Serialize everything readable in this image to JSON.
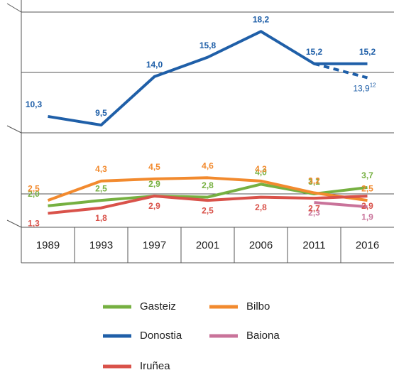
{
  "chart_data": {
    "type": "line",
    "categories": [
      "1989",
      "1993",
      "1997",
      "2001",
      "2006",
      "2011",
      "2016"
    ],
    "ylim": [
      0,
      20
    ],
    "series": [
      {
        "name": "Gasteiz",
        "color": "#76b041",
        "values": [
          2.0,
          2.5,
          2.9,
          2.8,
          4.0,
          3.1,
          3.7
        ],
        "value_labels": [
          "2,0",
          "2,5",
          "2,9",
          "2,8",
          "4,0",
          "3,1",
          "3,7"
        ]
      },
      {
        "name": "Bilbo",
        "color": "#f28a2e",
        "values": [
          2.5,
          4.3,
          4.5,
          4.6,
          4.3,
          3.2,
          2.5
        ],
        "value_labels": [
          "2,5",
          "4,3",
          "4,5",
          "4,6",
          "4,3",
          "3,2",
          "2,5"
        ]
      },
      {
        "name": "Donostia",
        "color": "#1f5fa8",
        "values": [
          10.3,
          9.5,
          14.0,
          15.8,
          18.2,
          15.2,
          15.2
        ],
        "value_labels": [
          "10,3",
          "9,5",
          "14,0",
          "15,8",
          "18,2",
          "15,2",
          "15,2"
        ],
        "projection_value": 13.9,
        "projection_label": "13,9",
        "projection_note": "12"
      },
      {
        "name": "Baiona",
        "color": "#c9739a",
        "values": [
          null,
          null,
          null,
          null,
          null,
          2.3,
          1.9
        ],
        "value_labels": [
          null,
          null,
          null,
          null,
          null,
          "2,3",
          "1,9"
        ]
      },
      {
        "name": "Iruñea",
        "color": "#d9524a",
        "values": [
          1.3,
          1.8,
          2.9,
          2.5,
          2.8,
          2.7,
          2.9
        ],
        "value_labels": [
          "1,3",
          "1,8",
          "2,9",
          "2,5",
          "2,8",
          "2,7",
          "2,9"
        ]
      }
    ]
  }
}
